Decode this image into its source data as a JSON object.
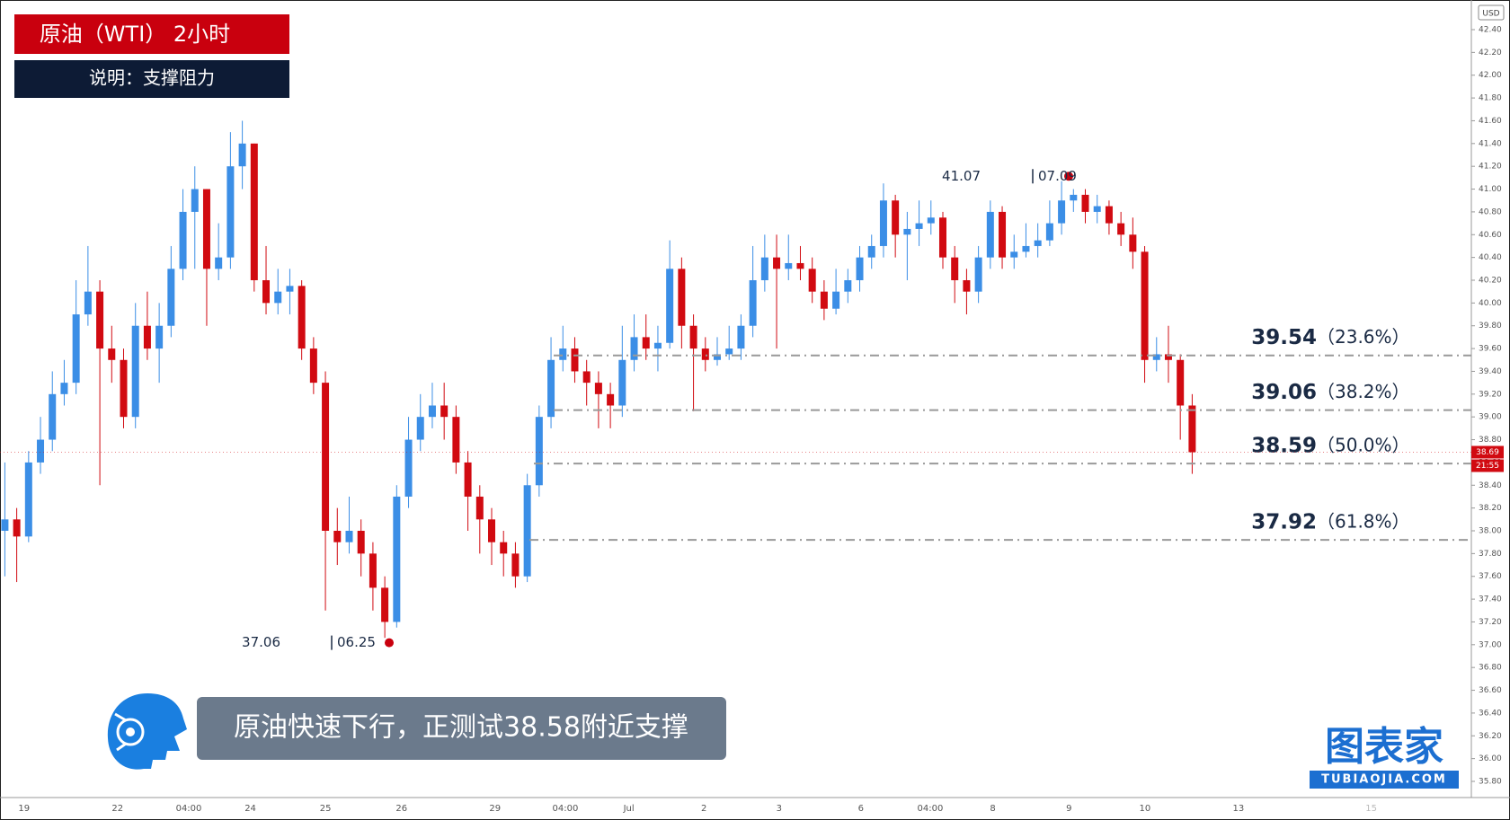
{
  "chart_data": {
    "type": "candlestick",
    "title": "原油（WTI） 2小时",
    "subtitle": "说明：支撑阻力",
    "caption": "原油快速下行，正测试38.58附近支撑",
    "logo": "图表家",
    "logo_sub": "TUBIAOJIA.COM",
    "currency": "USD",
    "last_price": 38.69,
    "countdown": "21:55",
    "up_color": "#3b8ee6",
    "down_color": "#d10a11",
    "x_labels": [
      "19",
      "22",
      "04:00",
      "24",
      "25",
      "26",
      "29",
      "04:00",
      "Jul",
      "2",
      "3",
      "6",
      "04:00",
      "8",
      "9",
      "10",
      "13",
      "15"
    ],
    "low_marker": {
      "price": 37.06,
      "date": "06.25"
    },
    "high_marker": {
      "price": 41.07,
      "date": "07.09"
    },
    "levels": [
      {
        "value": 39.54,
        "pct": "（23.6%）"
      },
      {
        "value": 39.06,
        "pct": "（38.2%）"
      },
      {
        "value": 38.59,
        "pct": "（50.0%）"
      },
      {
        "value": 37.92,
        "pct": "（61.8%）"
      }
    ],
    "ylim": [
      35.8,
      42.4
    ],
    "yticks": [
      {
        "value": 35.8,
        "label": "35.80"
      },
      {
        "value": 36.0,
        "label": "36.00"
      },
      {
        "value": 36.2,
        "label": "36.20"
      },
      {
        "value": 36.4,
        "label": "36.40"
      },
      {
        "value": 36.6,
        "label": "36.60"
      },
      {
        "value": 36.8,
        "label": "36.80"
      },
      {
        "value": 37.0,
        "label": "37.00"
      },
      {
        "value": 37.2,
        "label": "37.20"
      },
      {
        "value": 37.4,
        "label": "37.40"
      },
      {
        "value": 37.6,
        "label": "37.60"
      },
      {
        "value": 37.8,
        "label": "37.80"
      },
      {
        "value": 38.0,
        "label": "38.00"
      },
      {
        "value": 38.2,
        "label": "38.20"
      },
      {
        "value": 38.4,
        "label": "38.40"
      },
      {
        "value": 38.6,
        "label": "38.60"
      },
      {
        "value": 38.8,
        "label": "38.80"
      },
      {
        "value": 39.0,
        "label": "39.00"
      },
      {
        "value": 39.2,
        "label": "39.20"
      },
      {
        "value": 39.4,
        "label": "39.40"
      },
      {
        "value": 39.6,
        "label": "39.60"
      },
      {
        "value": 39.8,
        "label": "39.80"
      },
      {
        "value": 40.0,
        "label": "40.00"
      },
      {
        "value": 40.2,
        "label": "40.20"
      },
      {
        "value": 40.4,
        "label": "40.40"
      },
      {
        "value": 40.6,
        "label": "40.60"
      },
      {
        "value": 40.8,
        "label": "40.80"
      },
      {
        "value": 41.0,
        "label": "41.00"
      },
      {
        "value": 41.2,
        "label": "41.20"
      },
      {
        "value": 41.4,
        "label": "41.40"
      },
      {
        "value": 41.6,
        "label": "41.60"
      },
      {
        "value": 41.8,
        "label": "41.80"
      },
      {
        "value": 42.0,
        "label": "42.00"
      },
      {
        "value": 42.2,
        "label": "42.20"
      },
      {
        "value": 42.4,
        "label": "42.40"
      }
    ],
    "candles": [
      [
        38.0,
        38.6,
        37.6,
        38.1
      ],
      [
        38.1,
        38.2,
        37.55,
        37.95
      ],
      [
        37.95,
        38.7,
        37.9,
        38.6
      ],
      [
        38.6,
        39.0,
        38.5,
        38.8
      ],
      [
        38.8,
        39.4,
        38.7,
        39.2
      ],
      [
        39.2,
        39.5,
        39.1,
        39.3
      ],
      [
        39.3,
        40.2,
        39.2,
        39.9
      ],
      [
        39.9,
        40.5,
        39.8,
        40.1
      ],
      [
        40.1,
        40.2,
        38.4,
        39.6
      ],
      [
        39.6,
        39.8,
        39.3,
        39.5
      ],
      [
        39.5,
        39.6,
        38.9,
        39.0
      ],
      [
        39.0,
        40.0,
        38.9,
        39.8
      ],
      [
        39.8,
        40.1,
        39.5,
        39.6
      ],
      [
        39.6,
        40.0,
        39.3,
        39.8
      ],
      [
        39.8,
        40.5,
        39.7,
        40.3
      ],
      [
        40.3,
        41.0,
        40.2,
        40.8
      ],
      [
        40.8,
        41.2,
        40.3,
        41.0
      ],
      [
        41.0,
        41.0,
        39.8,
        40.3
      ],
      [
        40.3,
        40.7,
        40.2,
        40.4
      ],
      [
        40.4,
        41.5,
        40.3,
        41.2
      ],
      [
        41.2,
        41.6,
        41.0,
        41.4
      ],
      [
        41.4,
        41.4,
        40.1,
        40.2
      ],
      [
        40.2,
        40.5,
        39.9,
        40.0
      ],
      [
        40.0,
        40.3,
        39.9,
        40.1
      ],
      [
        40.1,
        40.3,
        39.9,
        40.15
      ],
      [
        40.15,
        40.2,
        39.5,
        39.6
      ],
      [
        39.6,
        39.7,
        39.2,
        39.3
      ],
      [
        39.3,
        39.4,
        37.3,
        38.0
      ],
      [
        38.0,
        38.2,
        37.7,
        37.9
      ],
      [
        37.9,
        38.3,
        37.8,
        38.0
      ],
      [
        38.0,
        38.1,
        37.6,
        37.8
      ],
      [
        37.8,
        37.9,
        37.3,
        37.5
      ],
      [
        37.5,
        37.6,
        37.06,
        37.2
      ],
      [
        37.2,
        38.4,
        37.15,
        38.3
      ],
      [
        38.3,
        39.0,
        38.2,
        38.8
      ],
      [
        38.8,
        39.2,
        38.7,
        39.0
      ],
      [
        39.0,
        39.3,
        38.9,
        39.1
      ],
      [
        39.1,
        39.3,
        38.8,
        39.0
      ],
      [
        39.0,
        39.1,
        38.5,
        38.6
      ],
      [
        38.6,
        38.7,
        38.0,
        38.3
      ],
      [
        38.3,
        38.4,
        37.8,
        38.1
      ],
      [
        38.1,
        38.2,
        37.7,
        37.9
      ],
      [
        37.9,
        38.0,
        37.6,
        37.8
      ],
      [
        37.8,
        37.9,
        37.5,
        37.6
      ],
      [
        37.6,
        38.5,
        37.55,
        38.4
      ],
      [
        38.4,
        39.1,
        38.3,
        39.0
      ],
      [
        39.0,
        39.7,
        38.9,
        39.5
      ],
      [
        39.5,
        39.8,
        39.4,
        39.6
      ],
      [
        39.6,
        39.7,
        39.3,
        39.4
      ],
      [
        39.4,
        39.5,
        39.1,
        39.3
      ],
      [
        39.3,
        39.4,
        38.9,
        39.2
      ],
      [
        39.2,
        39.3,
        38.9,
        39.1
      ],
      [
        39.1,
        39.8,
        39.0,
        39.5
      ],
      [
        39.5,
        39.9,
        39.4,
        39.7
      ],
      [
        39.7,
        39.9,
        39.5,
        39.6
      ],
      [
        39.6,
        39.8,
        39.4,
        39.65
      ],
      [
        39.65,
        40.55,
        39.6,
        40.3
      ],
      [
        40.3,
        40.4,
        39.6,
        39.8
      ],
      [
        39.8,
        39.9,
        39.05,
        39.6
      ],
      [
        39.6,
        39.7,
        39.4,
        39.5
      ],
      [
        39.5,
        39.7,
        39.45,
        39.55
      ],
      [
        39.55,
        39.8,
        39.5,
        39.6
      ],
      [
        39.6,
        39.9,
        39.5,
        39.8
      ],
      [
        39.8,
        40.5,
        39.7,
        40.2
      ],
      [
        40.2,
        40.6,
        40.1,
        40.4
      ],
      [
        40.4,
        40.6,
        39.6,
        40.3
      ],
      [
        40.3,
        40.6,
        40.2,
        40.35
      ],
      [
        40.35,
        40.5,
        40.2,
        40.3
      ],
      [
        40.3,
        40.4,
        40.0,
        40.1
      ],
      [
        40.1,
        40.2,
        39.85,
        39.95
      ],
      [
        39.95,
        40.3,
        39.9,
        40.1
      ],
      [
        40.1,
        40.3,
        40.0,
        40.2
      ],
      [
        40.2,
        40.5,
        40.1,
        40.4
      ],
      [
        40.4,
        40.6,
        40.3,
        40.5
      ],
      [
        40.5,
        41.05,
        40.4,
        40.9
      ],
      [
        40.9,
        40.95,
        40.4,
        40.6
      ],
      [
        40.6,
        40.8,
        40.2,
        40.65
      ],
      [
        40.65,
        40.9,
        40.5,
        40.7
      ],
      [
        40.7,
        40.9,
        40.6,
        40.75
      ],
      [
        40.75,
        40.8,
        40.3,
        40.4
      ],
      [
        40.4,
        40.5,
        40.0,
        40.2
      ],
      [
        40.2,
        40.3,
        39.9,
        40.1
      ],
      [
        40.1,
        40.5,
        40.0,
        40.4
      ],
      [
        40.4,
        40.9,
        40.3,
        40.8
      ],
      [
        40.8,
        40.85,
        40.3,
        40.4
      ],
      [
        40.4,
        40.6,
        40.3,
        40.45
      ],
      [
        40.45,
        40.7,
        40.4,
        40.5
      ],
      [
        40.5,
        40.7,
        40.4,
        40.55
      ],
      [
        40.55,
        40.9,
        40.5,
        40.7
      ],
      [
        40.7,
        41.07,
        40.6,
        40.9
      ],
      [
        40.9,
        41.0,
        40.8,
        40.95
      ],
      [
        40.95,
        41.0,
        40.7,
        40.8
      ],
      [
        40.8,
        40.95,
        40.7,
        40.85
      ],
      [
        40.85,
        40.9,
        40.6,
        40.7
      ],
      [
        40.7,
        40.8,
        40.5,
        40.6
      ],
      [
        40.6,
        40.75,
        40.3,
        40.45
      ],
      [
        40.45,
        40.5,
        39.3,
        39.5
      ],
      [
        39.5,
        39.7,
        39.4,
        39.55
      ],
      [
        39.55,
        39.8,
        39.3,
        39.5
      ],
      [
        39.5,
        39.55,
        38.8,
        39.1
      ],
      [
        39.1,
        39.2,
        38.5,
        38.69
      ]
    ]
  }
}
